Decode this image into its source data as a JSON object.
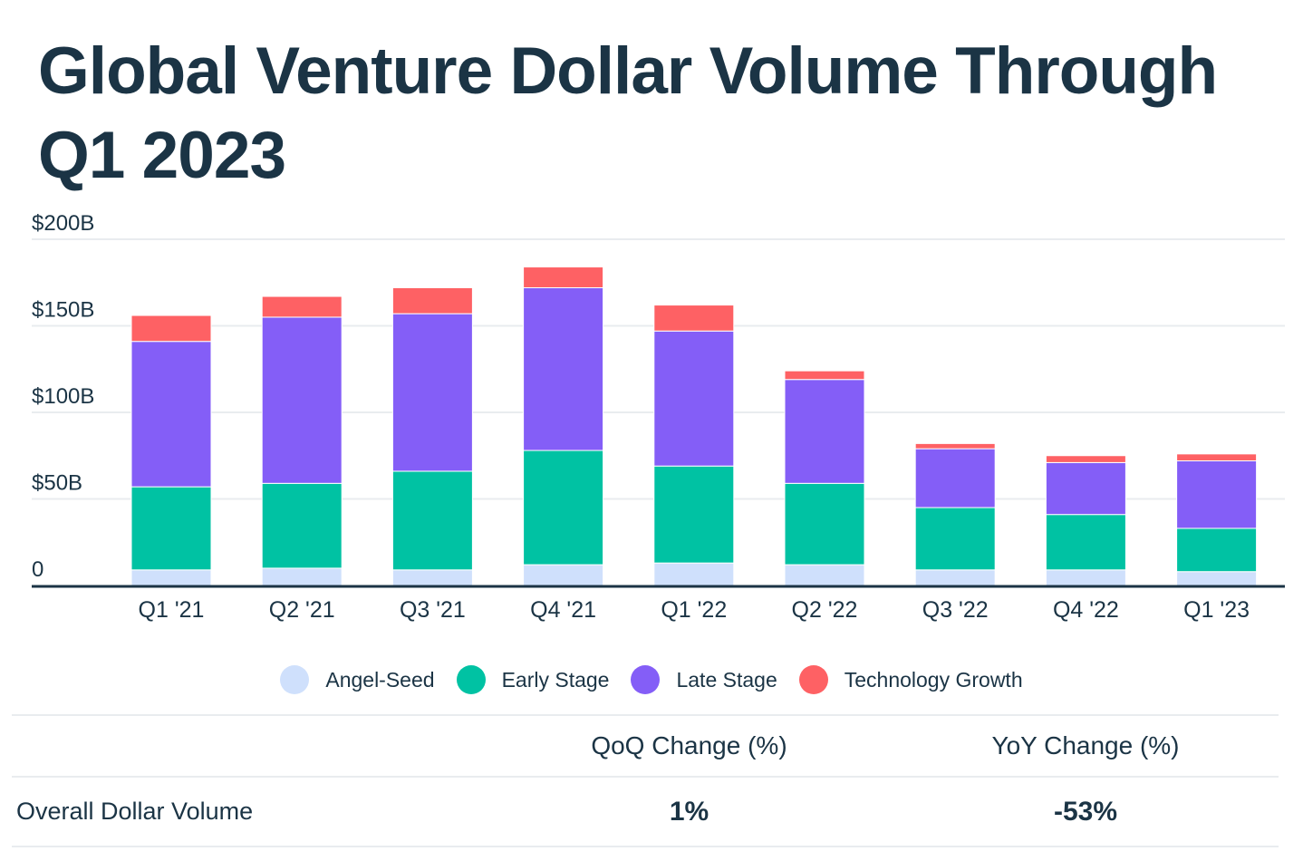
{
  "title": "Global Venture Dollar Volume Through Q1 2023",
  "chart_data": {
    "type": "bar",
    "stacked": true,
    "categories": [
      "Q1 '21",
      "Q2 '21",
      "Q3 '21",
      "Q4 '21",
      "Q1 '22",
      "Q2 '22",
      "Q3 '22",
      "Q4 '22",
      "Q1 '23"
    ],
    "series": [
      {
        "name": "Angel-Seed",
        "color": "#cfe0fc",
        "values": [
          9,
          10,
          9,
          12,
          13,
          12,
          9,
          9,
          8
        ]
      },
      {
        "name": "Early Stage",
        "color": "#00c2a3",
        "values": [
          48,
          49,
          57,
          66,
          56,
          47,
          36,
          32,
          25
        ]
      },
      {
        "name": "Late Stage",
        "color": "#845ef7",
        "values": [
          84,
          96,
          91,
          94,
          78,
          60,
          34,
          30,
          39
        ]
      },
      {
        "name": "Technology Growth",
        "color": "#fe6164",
        "values": [
          15,
          12,
          15,
          12,
          15,
          5,
          3,
          4,
          4
        ]
      }
    ],
    "ylim": [
      0,
      200
    ],
    "y_ticks": [
      0,
      50,
      100,
      150,
      200
    ],
    "y_tick_labels": [
      "0",
      "$50B",
      "$100B",
      "$150B",
      "$200B"
    ],
    "xlabel": "",
    "ylabel": "",
    "grid": true,
    "legend_position": "bottom"
  },
  "table": {
    "headers": [
      "",
      "QoQ Change (%)",
      "YoY Change (%)"
    ],
    "rows": [
      {
        "label": "Overall Dollar Volume",
        "qoq": "1%",
        "yoy": "-53%"
      }
    ]
  },
  "colors": {
    "text": "#1b3445",
    "grid": "#e9ecef",
    "axis": "#1b3445"
  }
}
